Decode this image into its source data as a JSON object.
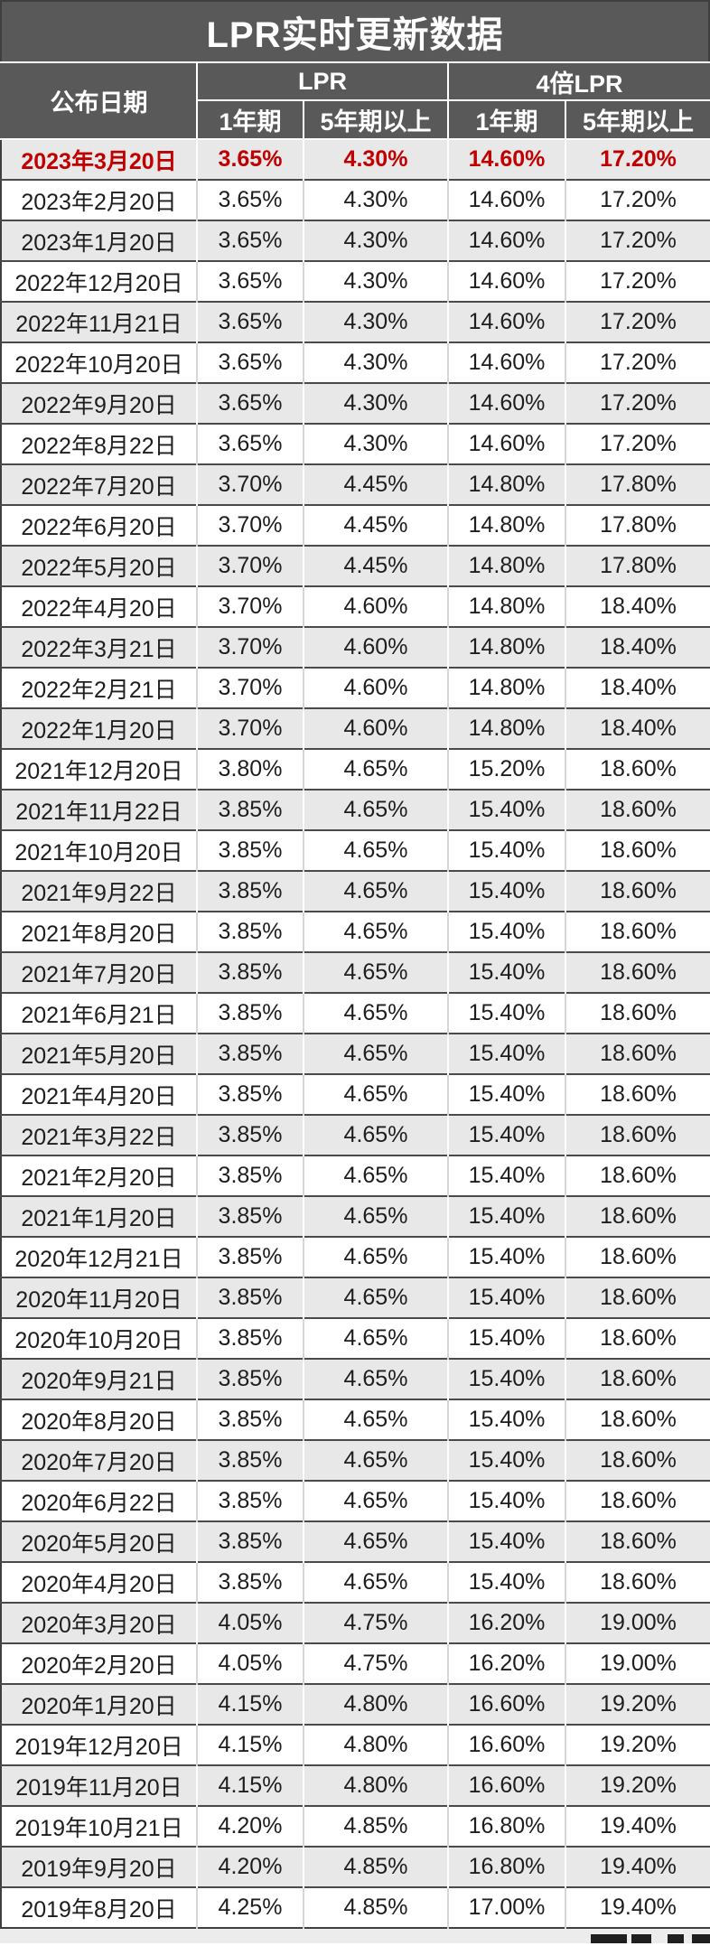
{
  "title": "LPR实时更新数据",
  "header": {
    "date_col": "公布日期",
    "groups": [
      {
        "label": "LPR"
      },
      {
        "label": "4倍LPR"
      }
    ],
    "sub_cols": [
      "1年期",
      "5年期以上",
      "1年期",
      "5年期以上"
    ]
  },
  "chart_data": {
    "type": "table",
    "title": "LPR实时更新数据",
    "columns": [
      "公布日期",
      "LPR 1年期",
      "LPR 5年期以上",
      "4倍LPR 1年期",
      "4倍LPR 5年期以上"
    ],
    "highlight_row": 0,
    "highlight_color": "#c00000",
    "rows": [
      [
        "2023年3月20日",
        "3.65%",
        "4.30%",
        "14.60%",
        "17.20%"
      ],
      [
        "2023年2月20日",
        "3.65%",
        "4.30%",
        "14.60%",
        "17.20%"
      ],
      [
        "2023年1月20日",
        "3.65%",
        "4.30%",
        "14.60%",
        "17.20%"
      ],
      [
        "2022年12月20日",
        "3.65%",
        "4.30%",
        "14.60%",
        "17.20%"
      ],
      [
        "2022年11月21日",
        "3.65%",
        "4.30%",
        "14.60%",
        "17.20%"
      ],
      [
        "2022年10月20日",
        "3.65%",
        "4.30%",
        "14.60%",
        "17.20%"
      ],
      [
        "2022年9月20日",
        "3.65%",
        "4.30%",
        "14.60%",
        "17.20%"
      ],
      [
        "2022年8月22日",
        "3.65%",
        "4.30%",
        "14.60%",
        "17.20%"
      ],
      [
        "2022年7月20日",
        "3.70%",
        "4.45%",
        "14.80%",
        "17.80%"
      ],
      [
        "2022年6月20日",
        "3.70%",
        "4.45%",
        "14.80%",
        "17.80%"
      ],
      [
        "2022年5月20日",
        "3.70%",
        "4.45%",
        "14.80%",
        "17.80%"
      ],
      [
        "2022年4月20日",
        "3.70%",
        "4.60%",
        "14.80%",
        "18.40%"
      ],
      [
        "2022年3月21日",
        "3.70%",
        "4.60%",
        "14.80%",
        "18.40%"
      ],
      [
        "2022年2月21日",
        "3.70%",
        "4.60%",
        "14.80%",
        "18.40%"
      ],
      [
        "2022年1月20日",
        "3.70%",
        "4.60%",
        "14.80%",
        "18.40%"
      ],
      [
        "2021年12月20日",
        "3.80%",
        "4.65%",
        "15.20%",
        "18.60%"
      ],
      [
        "2021年11月22日",
        "3.85%",
        "4.65%",
        "15.40%",
        "18.60%"
      ],
      [
        "2021年10月20日",
        "3.85%",
        "4.65%",
        "15.40%",
        "18.60%"
      ],
      [
        "2021年9月22日",
        "3.85%",
        "4.65%",
        "15.40%",
        "18.60%"
      ],
      [
        "2021年8月20日",
        "3.85%",
        "4.65%",
        "15.40%",
        "18.60%"
      ],
      [
        "2021年7月20日",
        "3.85%",
        "4.65%",
        "15.40%",
        "18.60%"
      ],
      [
        "2021年6月21日",
        "3.85%",
        "4.65%",
        "15.40%",
        "18.60%"
      ],
      [
        "2021年5月20日",
        "3.85%",
        "4.65%",
        "15.40%",
        "18.60%"
      ],
      [
        "2021年4月20日",
        "3.85%",
        "4.65%",
        "15.40%",
        "18.60%"
      ],
      [
        "2021年3月22日",
        "3.85%",
        "4.65%",
        "15.40%",
        "18.60%"
      ],
      [
        "2021年2月20日",
        "3.85%",
        "4.65%",
        "15.40%",
        "18.60%"
      ],
      [
        "2021年1月20日",
        "3.85%",
        "4.65%",
        "15.40%",
        "18.60%"
      ],
      [
        "2020年12月21日",
        "3.85%",
        "4.65%",
        "15.40%",
        "18.60%"
      ],
      [
        "2020年11月20日",
        "3.85%",
        "4.65%",
        "15.40%",
        "18.60%"
      ],
      [
        "2020年10月20日",
        "3.85%",
        "4.65%",
        "15.40%",
        "18.60%"
      ],
      [
        "2020年9月21日",
        "3.85%",
        "4.65%",
        "15.40%",
        "18.60%"
      ],
      [
        "2020年8月20日",
        "3.85%",
        "4.65%",
        "15.40%",
        "18.60%"
      ],
      [
        "2020年7月20日",
        "3.85%",
        "4.65%",
        "15.40%",
        "18.60%"
      ],
      [
        "2020年6月22日",
        "3.85%",
        "4.65%",
        "15.40%",
        "18.60%"
      ],
      [
        "2020年5月20日",
        "3.85%",
        "4.65%",
        "15.40%",
        "18.60%"
      ],
      [
        "2020年4月20日",
        "3.85%",
        "4.65%",
        "15.40%",
        "18.60%"
      ],
      [
        "2020年3月20日",
        "4.05%",
        "4.75%",
        "16.20%",
        "19.00%"
      ],
      [
        "2020年2月20日",
        "4.05%",
        "4.75%",
        "16.20%",
        "19.00%"
      ],
      [
        "2020年1月20日",
        "4.15%",
        "4.80%",
        "16.60%",
        "19.20%"
      ],
      [
        "2019年12月20日",
        "4.15%",
        "4.80%",
        "16.60%",
        "19.20%"
      ],
      [
        "2019年11月20日",
        "4.15%",
        "4.80%",
        "16.60%",
        "19.20%"
      ],
      [
        "2019年10月21日",
        "4.20%",
        "4.85%",
        "16.80%",
        "19.40%"
      ],
      [
        "2019年9月20日",
        "4.20%",
        "4.85%",
        "16.80%",
        "19.40%"
      ],
      [
        "2019年8月20日",
        "4.25%",
        "4.85%",
        "17.00%",
        "19.40%"
      ]
    ]
  },
  "colors": {
    "header_bg": "#595959",
    "header_text": "#ffffff",
    "row_alt_bg": "#e9e8e8",
    "row_bg": "#ffffff",
    "highlight_text": "#c00000",
    "body_text": "#1d1d1d",
    "row_border": "#4a4a4a"
  }
}
